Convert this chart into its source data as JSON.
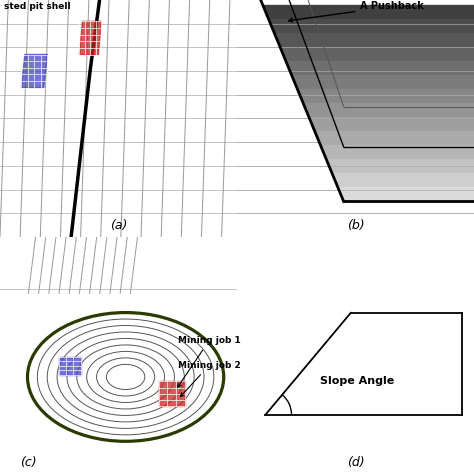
{
  "fig_width": 4.74,
  "fig_height": 4.74,
  "dpi": 100,
  "bg_color": "#ffffff",
  "label_a": "(a)",
  "label_b": "(b)",
  "label_c": "(c)",
  "label_d": "(d)",
  "text_pit_shell": "sted pit shell",
  "text_pushback": "A Pushback",
  "text_mining_job1": "Mining job 1",
  "text_mining_job2": "Mining job 2",
  "text_slope": "Slope Angle",
  "line_color": "#000000",
  "thick_line": 2.0,
  "thin_line": 0.7,
  "grid_line": 0.5,
  "blue_color": "#4444cc",
  "red_color": "#cc2222",
  "dark_olive": "#2a3a00",
  "gray_fill": "#888888"
}
